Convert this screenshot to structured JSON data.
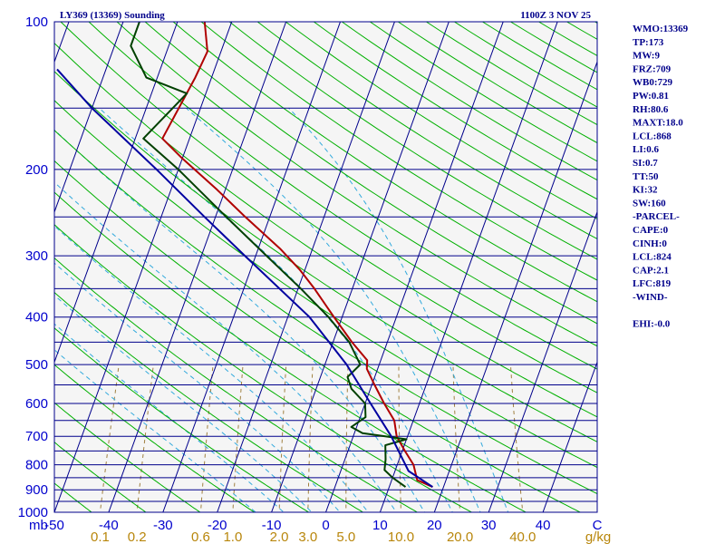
{
  "header": {
    "title_left": "LY369 (13369) Sounding",
    "title_right": "1100Z  3 NOV 25"
  },
  "indices": [
    "WMO:13369",
    "TP:173",
    "MW:9",
    "FRZ:709",
    "WB0:729",
    "PW:0.81",
    "RH:80.6",
    "MAXT:18.0",
    "LCL:868",
    "LI:0.6",
    "SI:0.7",
    "TT:50",
    "KI:32",
    "SW:160",
    "-PARCEL-",
    "CAPE:0",
    "CINH:0",
    "LCL:824",
    "CAP:2.1",
    "LFC:819",
    "-WIND-",
    "",
    "EHI:-0.0"
  ],
  "colors": {
    "background": "#ffffff",
    "plot_bg": "#f5f5f5",
    "isobar": "#00008b",
    "isotherm": "#00008b",
    "dry_adiabat": "#00b000",
    "moist_adiabat": "#33aadd",
    "mixing_ratio": "#a08040",
    "temperature": "#b00000",
    "dewpoint": "#004000",
    "parcel": "#0000a0",
    "text": "#00008b"
  },
  "chart_data": {
    "type": "skew-t",
    "title": "LY369 (13369) Sounding",
    "units": {
      "pressure": "mb",
      "temperature": "C",
      "mixing_ratio": "g/kg"
    },
    "pressure_range_mb": [
      1000,
      100
    ],
    "temperature_range_c": [
      -50,
      50
    ],
    "pressure_tick_labels": [
      "100",
      "200",
      "300",
      "400",
      "500",
      "600",
      "700",
      "800",
      "900",
      "1000"
    ],
    "pressure_tick_values": [
      100,
      200,
      300,
      400,
      500,
      600,
      700,
      800,
      900,
      1000
    ],
    "isobars_mb": [
      100,
      150,
      200,
      250,
      300,
      350,
      400,
      450,
      500,
      550,
      600,
      650,
      700,
      750,
      800,
      850,
      900,
      950,
      1000
    ],
    "temperature_tick_labels": [
      "-50",
      "-40",
      "-30",
      "-20",
      "-10",
      "0",
      "10",
      "20",
      "30",
      "40",
      "C"
    ],
    "isotherm_values_c": [
      -160,
      -150,
      -140,
      -130,
      -120,
      -110,
      -100,
      -90,
      -80,
      -70,
      -60,
      -50,
      -40,
      -30,
      -20,
      -10,
      0,
      10,
      20,
      30,
      40
    ],
    "mixing_ratio_labels": [
      "0.1",
      "0.2",
      "0.6",
      "1.0",
      "2.0",
      "3.0",
      "5.0",
      "10.0",
      "20.0",
      "40.0",
      "g/kg"
    ],
    "mixing_ratio_values": [
      0.1,
      0.2,
      0.6,
      1.0,
      2.0,
      3.0,
      5.0,
      10.0,
      20.0,
      40.0
    ],
    "dry_adiabat_theta_k": [
      190,
      200,
      210,
      220,
      230,
      240,
      250,
      260,
      270,
      280,
      290,
      300,
      310,
      320,
      330,
      340,
      350,
      360,
      370,
      380,
      390,
      400,
      410,
      420,
      430,
      440,
      450,
      460,
      470,
      480,
      490,
      500,
      510,
      520,
      530,
      540,
      550,
      560,
      570,
      580,
      590,
      600
    ],
    "moist_adiabat_start_c": [
      -10,
      -5,
      0,
      5,
      10,
      15,
      20,
      25,
      30,
      35
    ],
    "series": [
      {
        "name": "temperature",
        "points": [
          {
            "p": 888,
            "t": 18.0
          },
          {
            "p": 860,
            "t": 14.7
          },
          {
            "p": 800,
            "t": 13.0
          },
          {
            "p": 750,
            "t": 10.5
          },
          {
            "p": 700,
            "t": 8.0
          },
          {
            "p": 650,
            "t": 6.5
          },
          {
            "p": 600,
            "t": 3.5
          },
          {
            "p": 550,
            "t": 0.5
          },
          {
            "p": 510,
            "t": -2.0
          },
          {
            "p": 490,
            "t": -2.5
          },
          {
            "p": 450,
            "t": -6.5
          },
          {
            "p": 400,
            "t": -11.5
          },
          {
            "p": 350,
            "t": -17.0
          },
          {
            "p": 320,
            "t": -21.0
          },
          {
            "p": 290,
            "t": -26.0
          },
          {
            "p": 250,
            "t": -34.5
          },
          {
            "p": 220,
            "t": -41.5
          },
          {
            "p": 190,
            "t": -50.0
          },
          {
            "p": 173,
            "t": -55.0
          },
          {
            "p": 130,
            "t": -53.0
          },
          {
            "p": 115,
            "t": -52.5
          },
          {
            "p": 100,
            "t": -55.0
          }
        ]
      },
      {
        "name": "dewpoint",
        "points": [
          {
            "p": 888,
            "t": 13.0
          },
          {
            "p": 850,
            "t": 10.0
          },
          {
            "p": 820,
            "t": 8.0
          },
          {
            "p": 780,
            "t": 7.5
          },
          {
            "p": 730,
            "t": 6.5
          },
          {
            "p": 710,
            "t": 10.0
          },
          {
            "p": 690,
            "t": 1.5
          },
          {
            "p": 670,
            "t": -1.0
          },
          {
            "p": 640,
            "t": 1.0
          },
          {
            "p": 600,
            "t": 0.0
          },
          {
            "p": 560,
            "t": -3.5
          },
          {
            "p": 530,
            "t": -5.0
          },
          {
            "p": 500,
            "t": -3.5
          },
          {
            "p": 450,
            "t": -7.0
          },
          {
            "p": 400,
            "t": -12.5
          },
          {
            "p": 350,
            "t": -19.5
          },
          {
            "p": 300,
            "t": -28.0
          },
          {
            "p": 250,
            "t": -38.0
          },
          {
            "p": 200,
            "t": -50.0
          },
          {
            "p": 173,
            "t": -58.5
          },
          {
            "p": 140,
            "t": -53.5
          },
          {
            "p": 130,
            "t": -62.0
          },
          {
            "p": 112,
            "t": -67.0
          },
          {
            "p": 100,
            "t": -67.0
          }
        ]
      },
      {
        "name": "parcel",
        "points": [
          {
            "p": 888,
            "t": 18.0
          },
          {
            "p": 824,
            "t": 12.5
          },
          {
            "p": 700,
            "t": 7.0
          },
          {
            "p": 600,
            "t": 1.0
          },
          {
            "p": 500,
            "t": -6.0
          },
          {
            "p": 400,
            "t": -16.0
          },
          {
            "p": 300,
            "t": -32.0
          },
          {
            "p": 250,
            "t": -42.0
          },
          {
            "p": 200,
            "t": -54.0
          },
          {
            "p": 150,
            "t": -70.0
          },
          {
            "p": 125,
            "t": -79.0
          }
        ]
      }
    ]
  }
}
